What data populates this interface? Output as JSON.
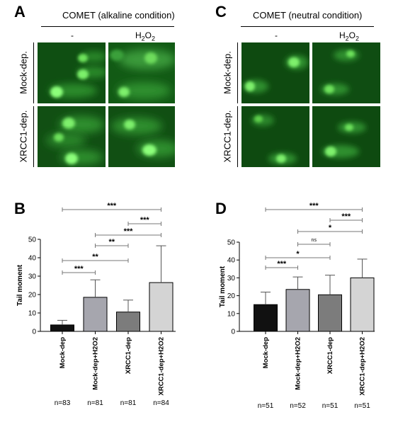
{
  "panels": {
    "A": {
      "letter": "A",
      "title": "COMET (alkaline condition)"
    },
    "B": {
      "letter": "B"
    },
    "C": {
      "letter": "C",
      "title": "COMET (neutral condition)"
    },
    "D": {
      "letter": "D"
    }
  },
  "column_headers": {
    "control": "-",
    "treated_base": "H",
    "treated_sub": "2",
    "treated_tail": "O",
    "treated_sub2": "2"
  },
  "row_labels": {
    "top": "Mock-dep.",
    "bottom": "XRCC1-dep."
  },
  "chart_data": [
    {
      "panel": "B",
      "type": "bar",
      "categories": [
        "Mock-dep",
        "Mock-dep+H2O2",
        "XRCC1-dep",
        "XRCC1-dep+H2O2"
      ],
      "values": [
        3.5,
        18.5,
        10.5,
        26.5
      ],
      "errors": [
        2.5,
        9.5,
        6.5,
        20
      ],
      "colors": [
        "#111111",
        "#a6a6ae",
        "#7c7c7c",
        "#d4d4d4"
      ],
      "ylabel": "Tail moment",
      "ylim": [
        0,
        50
      ],
      "yticks": [
        "0",
        "10",
        "20",
        "30",
        "40",
        "50"
      ],
      "n_labels": [
        "n=83",
        "n=81",
        "n=81",
        "n=84"
      ],
      "significance": [
        {
          "from": 0,
          "to": 3,
          "label": "***"
        },
        {
          "from": 2,
          "to": 3,
          "label": "***"
        },
        {
          "from": 1,
          "to": 3,
          "label": "***"
        },
        {
          "from": 1,
          "to": 2,
          "label": "**"
        },
        {
          "from": 0,
          "to": 2,
          "label": "**"
        },
        {
          "from": 0,
          "to": 1,
          "label": "***"
        }
      ]
    },
    {
      "panel": "D",
      "type": "bar",
      "categories": [
        "Mock-dep",
        "Mock-dep+H2O2",
        "XRCC1-dep",
        "XRCC1-dep+H2O2"
      ],
      "values": [
        15,
        23.5,
        20.5,
        30
      ],
      "errors": [
        7,
        7,
        11,
        10.5
      ],
      "colors": [
        "#111111",
        "#a6a6ae",
        "#7c7c7c",
        "#d4d4d4"
      ],
      "ylabel": "Tail moment",
      "ylim": [
        0,
        50
      ],
      "yticks": [
        "0",
        "10",
        "20",
        "30",
        "40",
        "50"
      ],
      "n_labels": [
        "n=51",
        "n=52",
        "n=51",
        "n=51"
      ],
      "significance": [
        {
          "from": 0,
          "to": 3,
          "label": "***"
        },
        {
          "from": 2,
          "to": 3,
          "label": "***"
        },
        {
          "from": 1,
          "to": 3,
          "label": "*"
        },
        {
          "from": 1,
          "to": 2,
          "label": "ns"
        },
        {
          "from": 0,
          "to": 2,
          "label": "*"
        },
        {
          "from": 0,
          "to": 1,
          "label": "***"
        }
      ]
    }
  ]
}
